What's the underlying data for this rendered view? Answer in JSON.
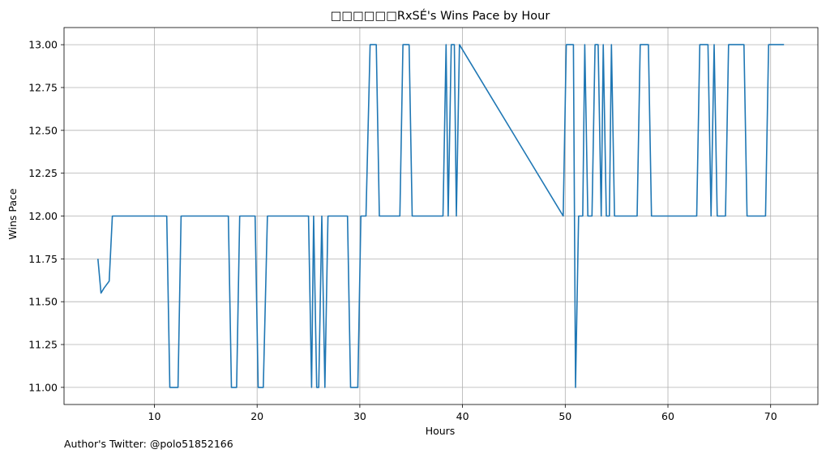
{
  "chart_data": {
    "type": "line",
    "title": "□□□□□□RxSÉ's Wins Pace by Hour",
    "xlabel": "Hours",
    "ylabel": "Wins Pace",
    "xlim": [
      1.2,
      74.6
    ],
    "ylim": [
      10.9,
      13.1
    ],
    "xticks": [
      10,
      20,
      30,
      40,
      50,
      60,
      70
    ],
    "yticks": [
      11.0,
      11.25,
      11.5,
      11.75,
      12.0,
      12.25,
      12.5,
      12.75,
      13.0
    ],
    "ytick_labels": [
      "11.00",
      "11.25",
      "11.50",
      "11.75",
      "12.00",
      "12.25",
      "12.50",
      "12.75",
      "13.00"
    ],
    "grid": true,
    "color": "#1f77b4",
    "x": [
      4.5,
      4.8,
      5.1,
      5.6,
      5.9,
      11.2,
      11.5,
      12.3,
      12.6,
      17.2,
      17.5,
      18.0,
      18.3,
      19.8,
      20.1,
      20.6,
      21.0,
      25.0,
      25.3,
      25.5,
      25.8,
      26.0,
      26.3,
      26.6,
      26.9,
      28.8,
      29.1,
      29.8,
      30.1,
      30.6,
      31.0,
      31.6,
      31.9,
      33.9,
      34.2,
      34.8,
      35.1,
      38.1,
      38.4,
      38.6,
      38.9,
      39.2,
      39.4,
      39.7,
      49.8,
      50.1,
      50.8,
      51.0,
      51.3,
      51.7,
      51.9,
      52.2,
      52.6,
      52.9,
      53.2,
      53.5,
      53.7,
      54.0,
      54.3,
      54.5,
      54.8,
      57.0,
      57.3,
      58.1,
      58.4,
      62.8,
      63.1,
      63.9,
      64.2,
      64.5,
      64.8,
      65.6,
      65.9,
      67.4,
      67.7,
      69.5,
      69.8,
      71.3
    ],
    "y": [
      11.75,
      11.55,
      11.58,
      11.62,
      12.0,
      12.0,
      11.0,
      11.0,
      12.0,
      12.0,
      11.0,
      11.0,
      12.0,
      12.0,
      11.0,
      11.0,
      12.0,
      12.0,
      11.0,
      12.0,
      11.0,
      11.0,
      12.0,
      11.0,
      12.0,
      12.0,
      11.0,
      11.0,
      12.0,
      12.0,
      13.0,
      13.0,
      12.0,
      12.0,
      13.0,
      13.0,
      12.0,
      12.0,
      13.0,
      12.0,
      13.0,
      13.0,
      12.0,
      13.0,
      12.0,
      13.0,
      13.0,
      11.0,
      12.0,
      12.0,
      13.0,
      12.0,
      12.0,
      13.0,
      13.0,
      12.0,
      13.0,
      12.0,
      12.0,
      13.0,
      12.0,
      12.0,
      13.0,
      13.0,
      12.0,
      12.0,
      13.0,
      13.0,
      12.0,
      13.0,
      12.0,
      12.0,
      13.0,
      13.0,
      12.0,
      12.0,
      13.0,
      13.0
    ]
  },
  "footnote": "Author's Twitter: @polo51852166"
}
